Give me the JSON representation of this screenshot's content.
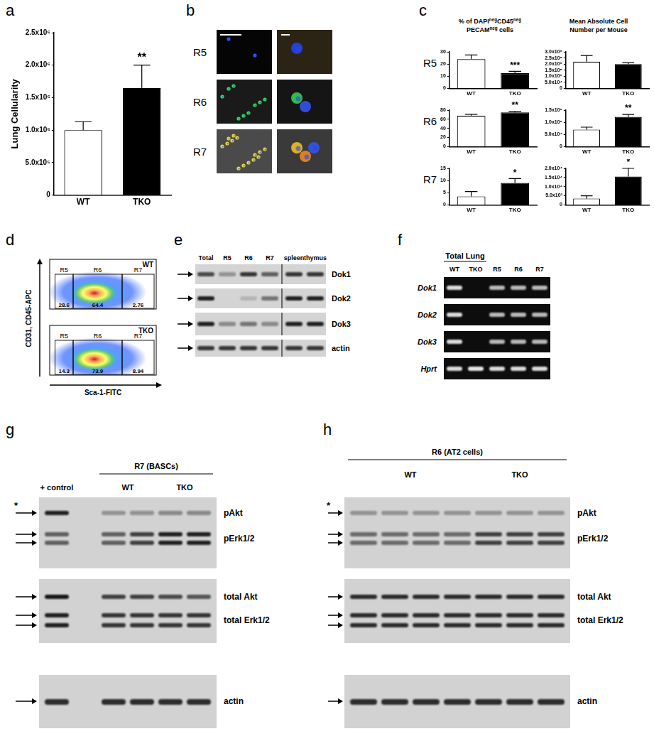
{
  "chart_data": [
    {
      "type": "bar",
      "letter": "a",
      "y_label": "Lung Cellularity",
      "categories": [
        "WT",
        "TKO"
      ],
      "values": [
        1000000,
        1650000
      ],
      "errors": [
        130000,
        350000
      ],
      "colors": [
        "#ffffff",
        "#000000"
      ],
      "ylim": [
        0,
        2500000
      ],
      "yticks": [
        0,
        {
          "value": 500000,
          "label": "5.0x10⁵"
        },
        {
          "value": 1000000,
          "label": "1.0x10⁶"
        },
        {
          "value": 1500000,
          "label": "1.5x10⁶"
        },
        {
          "value": 2000000,
          "label": "2.0x10⁶"
        },
        {
          "value": 2500000,
          "label": "2.5x10⁶"
        }
      ],
      "annotations": [
        {
          "category": "TKO",
          "text": "**"
        }
      ],
      "grid": false
    },
    {
      "type": "bar",
      "categories": [
        "WT",
        "TKO"
      ],
      "values": [
        24,
        12.5
      ],
      "errors": [
        3.5,
        1.5
      ],
      "colors": [
        "#ffffff",
        "#000000"
      ],
      "ylim": [
        0,
        30
      ],
      "yticks": [
        0,
        10,
        20,
        30
      ],
      "annotations": [
        {
          "category": "TKO",
          "text": "***"
        }
      ],
      "grid": false
    },
    {
      "type": "bar",
      "categories": [
        "WT",
        "TKO"
      ],
      "values": [
        220000,
        200000
      ],
      "errors": [
        50000,
        10000
      ],
      "colors": [
        "#ffffff",
        "#000000"
      ],
      "ylim": [
        0,
        300000
      ],
      "yticks": [
        0,
        {
          "value": 50000,
          "label": "5.0x10⁴"
        },
        {
          "value": 100000,
          "label": "1.0x10⁵"
        },
        {
          "value": 150000,
          "label": "1.5x10⁵"
        },
        {
          "value": 200000,
          "label": "2.0x10⁵"
        },
        {
          "value": 250000,
          "label": "2.5x10⁵"
        },
        {
          "value": 300000,
          "label": "3.0x10⁵"
        }
      ],
      "annotations": [],
      "grid": false
    },
    {
      "type": "bar",
      "categories": [
        "WT",
        "TKO"
      ],
      "values": [
        68,
        75
      ],
      "errors": [
        3,
        2
      ],
      "colors": [
        "#ffffff",
        "#000000"
      ],
      "ylim": [
        0,
        80
      ],
      "yticks": [
        0,
        20,
        40,
        60,
        80
      ],
      "annotations": [
        {
          "category": "TKO",
          "text": "**"
        }
      ],
      "grid": false
    },
    {
      "type": "bar",
      "categories": [
        "WT",
        "TKO"
      ],
      "values": [
        70000,
        122000
      ],
      "errors": [
        10000,
        10000
      ],
      "colors": [
        "#ffffff",
        "#000000"
      ],
      "ylim": [
        0,
        150000
      ],
      "yticks": [
        0,
        {
          "value": 50000,
          "label": "5.0x10⁴"
        },
        {
          "value": 100000,
          "label": "1.0x10⁵"
        },
        {
          "value": 150000,
          "label": "1.5x10⁵"
        }
      ],
      "annotations": [
        {
          "category": "TKO",
          "text": "**"
        }
      ],
      "grid": false
    },
    {
      "type": "bar",
      "categories": [
        "WT",
        "TKO"
      ],
      "values": [
        3.5,
        9
      ],
      "errors": [
        2,
        1.8
      ],
      "colors": [
        "#ffffff",
        "#000000"
      ],
      "ylim": [
        0,
        15
      ],
      "yticks": [
        0,
        5,
        10,
        15
      ],
      "annotations": [
        {
          "category": "TKO",
          "text": "*"
        }
      ],
      "grid": false
    },
    {
      "type": "bar",
      "categories": [
        "WT",
        "TKO"
      ],
      "values": [
        3500,
        15500
      ],
      "errors": [
        1500,
        4500
      ],
      "colors": [
        "#ffffff",
        "#000000"
      ],
      "ylim": [
        0,
        20000
      ],
      "yticks": [
        0,
        {
          "value": 5000,
          "label": "5.0x10³"
        },
        {
          "value": 10000,
          "label": "1.0x10⁴"
        },
        {
          "value": 15000,
          "label": "1.5x10⁴"
        },
        {
          "value": 20000,
          "label": "2.0x10⁴"
        }
      ],
      "annotations": [
        {
          "category": "TKO",
          "text": "*"
        }
      ],
      "grid": false
    }
  ],
  "panel_b": {
    "letter": "b",
    "rows": [
      "R5",
      "R6",
      "R7"
    ]
  },
  "panel_c": {
    "letter": "c",
    "rows": [
      "R5",
      "R6",
      "R7"
    ],
    "column_titles": [
      {
        "lines": [
          [
            {
              "text": "% of DAPI"
            },
            {
              "text": "neg",
              "sup": true
            },
            {
              "text": "CD45"
            },
            {
              "text": "neg",
              "sup": true
            }
          ],
          [
            {
              "text": "PECAM"
            },
            {
              "text": "neg",
              "sup": true
            },
            {
              "text": " cells"
            }
          ]
        ]
      },
      {
        "lines": [
          [
            {
              "text": "Mean Absolute Cell"
            }
          ],
          [
            {
              "text": "Number per Mouse"
            }
          ]
        ]
      }
    ]
  },
  "panel_d": {
    "letter": "d",
    "y_label": "CD31, CD45-APC",
    "x_label": "Sca-1-FITC",
    "plots": [
      {
        "name": "WT",
        "gates": [
          "R5",
          "R6",
          "R7"
        ],
        "percentages": [
          28.6,
          64.4,
          2.76
        ]
      },
      {
        "name": "TKO",
        "gates": [
          "R5",
          "R6",
          "R7"
        ],
        "percentages": [
          14.3,
          73.9,
          8.94
        ]
      }
    ]
  },
  "panel_e": {
    "letter": "e",
    "lanes": [
      "Total",
      "R5",
      "R6",
      "R7",
      "spleen",
      "thymus"
    ],
    "rows": [
      "Dok1",
      "Dok2",
      "Dok3",
      "actin"
    ]
  },
  "panel_f": {
    "letter": "f",
    "group": "Total Lung",
    "lanes": [
      "WT",
      "TKO",
      "R5",
      "R6",
      "R7"
    ],
    "rows": [
      "Dok1",
      "Dok2",
      "Dok3",
      "Hprt"
    ]
  },
  "panel_g": {
    "letter": "g",
    "group": "R7 (BASCs)",
    "control": "+ control",
    "lane_groups": [
      "WT",
      "TKO"
    ],
    "rows": [
      "pAkt",
      "pErk1/2",
      "total Akt",
      "total Erk1/2",
      "actin"
    ],
    "asterisk": "*"
  },
  "panel_h": {
    "letter": "h",
    "group": "R6 (AT2 cells)",
    "lane_groups": [
      "WT",
      "TKO"
    ],
    "rows": [
      "pAkt",
      "pErk1/2",
      "total Akt",
      "total Erk1/2",
      "actin"
    ],
    "asterisk": "*"
  }
}
